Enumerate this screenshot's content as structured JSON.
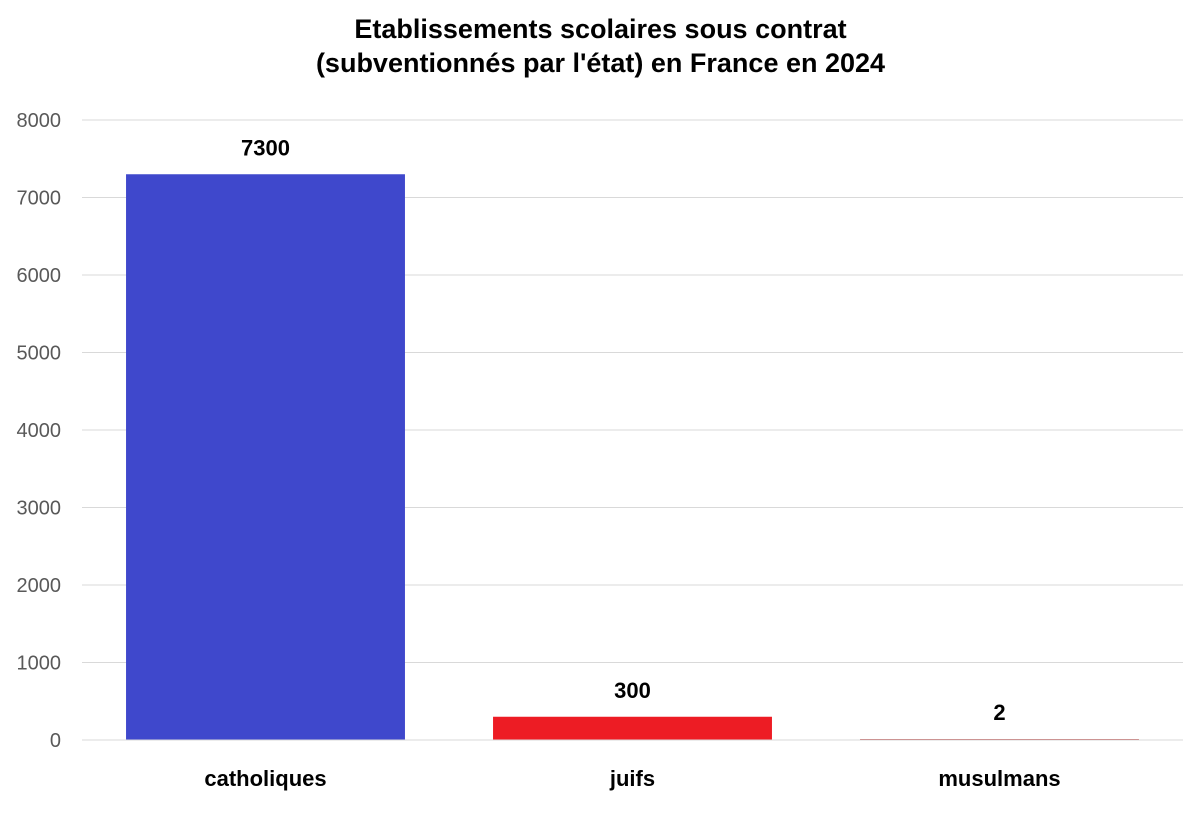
{
  "chart_data": {
    "type": "bar",
    "title_lines": [
      "Etablissements scolaires sous contrat",
      "(subventionnés par l'état) en France en 2024"
    ],
    "categories": [
      "catholiques",
      "juifs",
      "musulmans"
    ],
    "values": [
      7300,
      300,
      2
    ],
    "data_labels": [
      "7300",
      "300",
      "2"
    ],
    "bar_colors": [
      "#3F48CC",
      "#ED1C24",
      "#C0504D"
    ],
    "ylim": [
      0,
      8000
    ],
    "yticks": [
      0,
      1000,
      2000,
      3000,
      4000,
      5000,
      6000,
      7000,
      8000
    ],
    "grid": true,
    "legend": "none"
  }
}
